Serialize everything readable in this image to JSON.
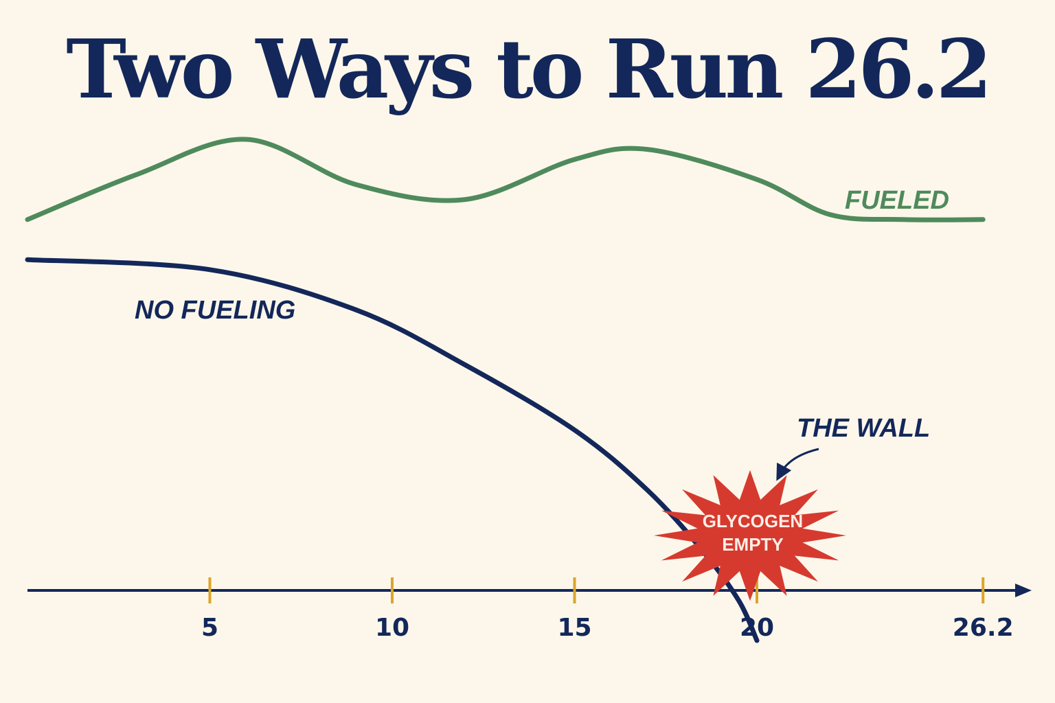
{
  "chart_data": {
    "type": "line",
    "title": "Two Ways to Run 26.2",
    "xlabel": "",
    "ylabel": "",
    "x_ticks": [
      "5",
      "10",
      "15",
      "20",
      "26.2"
    ],
    "series": [
      {
        "name": "FUELED",
        "color": "#4f8a5c",
        "x": [
          0,
          3,
          6,
          9,
          12,
          15,
          17,
          20,
          22,
          24,
          26.2
        ],
        "y": [
          0.74,
          0.83,
          0.9,
          0.81,
          0.78,
          0.86,
          0.88,
          0.82,
          0.75,
          0.74,
          0.74
        ]
      },
      {
        "name": "NO FUELING",
        "color": "#13275a",
        "x": [
          0,
          5,
          9,
          12,
          15,
          17,
          18.5,
          19.5,
          20
        ],
        "y": [
          0.66,
          0.64,
          0.56,
          0.45,
          0.32,
          0.2,
          0.08,
          -0.02,
          -0.1
        ]
      }
    ],
    "annotations": [
      {
        "text": "THE WALL",
        "color": "#13275a"
      },
      {
        "text_line1": "GLYCOGEN",
        "text_line2": "EMPTY",
        "color": "#d63a2f"
      }
    ]
  }
}
